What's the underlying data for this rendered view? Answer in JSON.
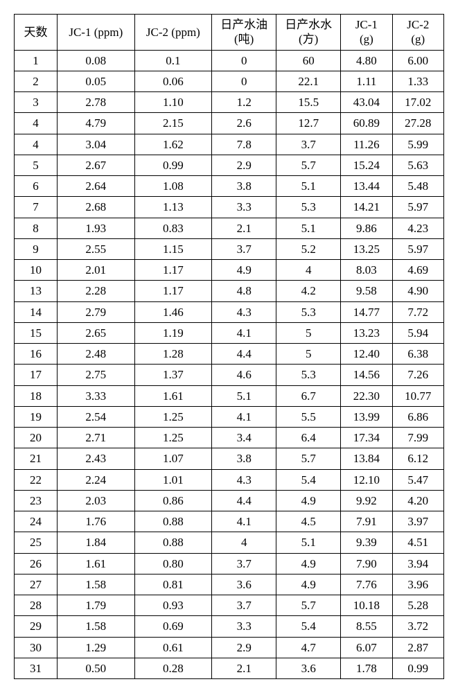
{
  "table": {
    "type": "table",
    "background_color": "#ffffff",
    "border_color": "#000000",
    "text_color": "#000000",
    "font_size_pt": 13,
    "columns": [
      {
        "label": "天数"
      },
      {
        "label": "JC-1 (ppm)"
      },
      {
        "label": "JC-2 (ppm)"
      },
      {
        "label": "日产水油\n(吨)"
      },
      {
        "label": "日产水水\n(方)"
      },
      {
        "label": "JC-1\n(g)"
      },
      {
        "label": "JC-2\n(g)"
      }
    ],
    "rows": [
      [
        "1",
        "0.08",
        "0.1",
        "0",
        "60",
        "4.80",
        "6.00"
      ],
      [
        "2",
        "0.05",
        "0.06",
        "0",
        "22.1",
        "1.11",
        "1.33"
      ],
      [
        "3",
        "2.78",
        "1.10",
        "1.2",
        "15.5",
        "43.04",
        "17.02"
      ],
      [
        "4",
        "4.79",
        "2.15",
        "2.6",
        "12.7",
        "60.89",
        "27.28"
      ],
      [
        "4",
        "3.04",
        "1.62",
        "7.8",
        "3.7",
        "11.26",
        "5.99"
      ],
      [
        "5",
        "2.67",
        "0.99",
        "2.9",
        "5.7",
        "15.24",
        "5.63"
      ],
      [
        "6",
        "2.64",
        "1.08",
        "3.8",
        "5.1",
        "13.44",
        "5.48"
      ],
      [
        "7",
        "2.68",
        "1.13",
        "3.3",
        "5.3",
        "14.21",
        "5.97"
      ],
      [
        "8",
        "1.93",
        "0.83",
        "2.1",
        "5.1",
        "9.86",
        "4.23"
      ],
      [
        "9",
        "2.55",
        "1.15",
        "3.7",
        "5.2",
        "13.25",
        "5.97"
      ],
      [
        "10",
        "2.01",
        "1.17",
        "4.9",
        "4",
        "8.03",
        "4.69"
      ],
      [
        "13",
        "2.28",
        "1.17",
        "4.8",
        "4.2",
        "9.58",
        "4.90"
      ],
      [
        "14",
        "2.79",
        "1.46",
        "4.3",
        "5.3",
        "14.77",
        "7.72"
      ],
      [
        "15",
        "2.65",
        "1.19",
        "4.1",
        "5",
        "13.23",
        "5.94"
      ],
      [
        "16",
        "2.48",
        "1.28",
        "4.4",
        "5",
        "12.40",
        "6.38"
      ],
      [
        "17",
        "2.75",
        "1.37",
        "4.6",
        "5.3",
        "14.56",
        "7.26"
      ],
      [
        "18",
        "3.33",
        "1.61",
        "5.1",
        "6.7",
        "22.30",
        "10.77"
      ],
      [
        "19",
        "2.54",
        "1.25",
        "4.1",
        "5.5",
        "13.99",
        "6.86"
      ],
      [
        "20",
        "2.71",
        "1.25",
        "3.4",
        "6.4",
        "17.34",
        "7.99"
      ],
      [
        "21",
        "2.43",
        "1.07",
        "3.8",
        "5.7",
        "13.84",
        "6.12"
      ],
      [
        "22",
        "2.24",
        "1.01",
        "4.3",
        "5.4",
        "12.10",
        "5.47"
      ],
      [
        "23",
        "2.03",
        "0.86",
        "4.4",
        "4.9",
        "9.92",
        "4.20"
      ],
      [
        "24",
        "1.76",
        "0.88",
        "4.1",
        "4.5",
        "7.91",
        "3.97"
      ],
      [
        "25",
        "1.84",
        "0.88",
        "4",
        "5.1",
        "9.39",
        "4.51"
      ],
      [
        "26",
        "1.61",
        "0.80",
        "3.7",
        "4.9",
        "7.90",
        "3.94"
      ],
      [
        "27",
        "1.58",
        "0.81",
        "3.6",
        "4.9",
        "7.76",
        "3.96"
      ],
      [
        "28",
        "1.79",
        "0.93",
        "3.7",
        "5.7",
        "10.18",
        "5.28"
      ],
      [
        "29",
        "1.58",
        "0.69",
        "3.3",
        "5.4",
        "8.55",
        "3.72"
      ],
      [
        "30",
        "1.29",
        "0.61",
        "2.9",
        "4.7",
        "6.07",
        "2.87"
      ],
      [
        "31",
        "0.50",
        "0.28",
        "2.1",
        "3.6",
        "1.78",
        "0.99"
      ]
    ]
  }
}
